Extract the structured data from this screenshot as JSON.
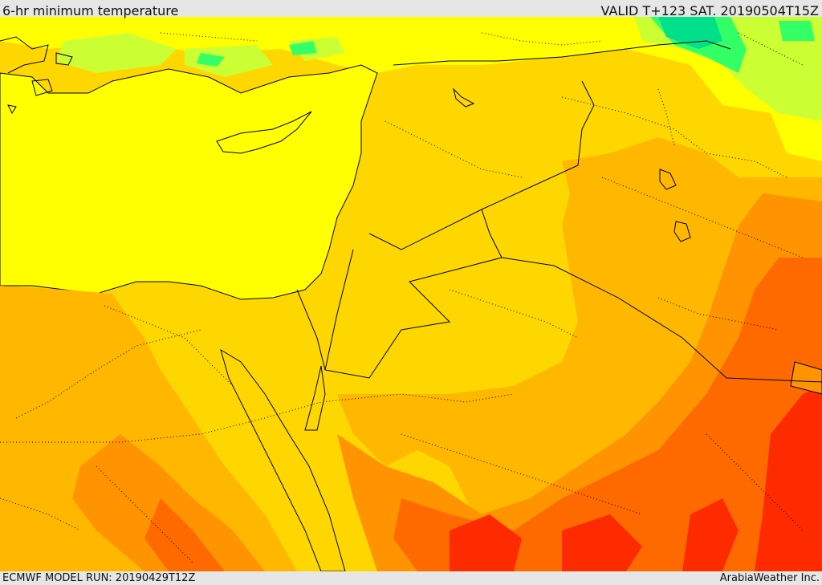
{
  "header": {
    "title": "6-hr minimum temperature",
    "valid": "VALID T+123 SAT. 20190504T15Z"
  },
  "footer": {
    "model_run": "ECMWF MODEL RUN: 20190429T12Z",
    "credit": "ArabiaWeather Inc."
  },
  "map": {
    "field_colors": {
      "yellow": "#ffff00",
      "gold": "#ffd700",
      "amber": "#ffb700",
      "orange": "#ff9400",
      "dark_orange": "#ff6a00",
      "red": "#ff2b00",
      "light_green": "#ccff33",
      "green": "#33ff66",
      "teal": "#00e08a"
    }
  }
}
